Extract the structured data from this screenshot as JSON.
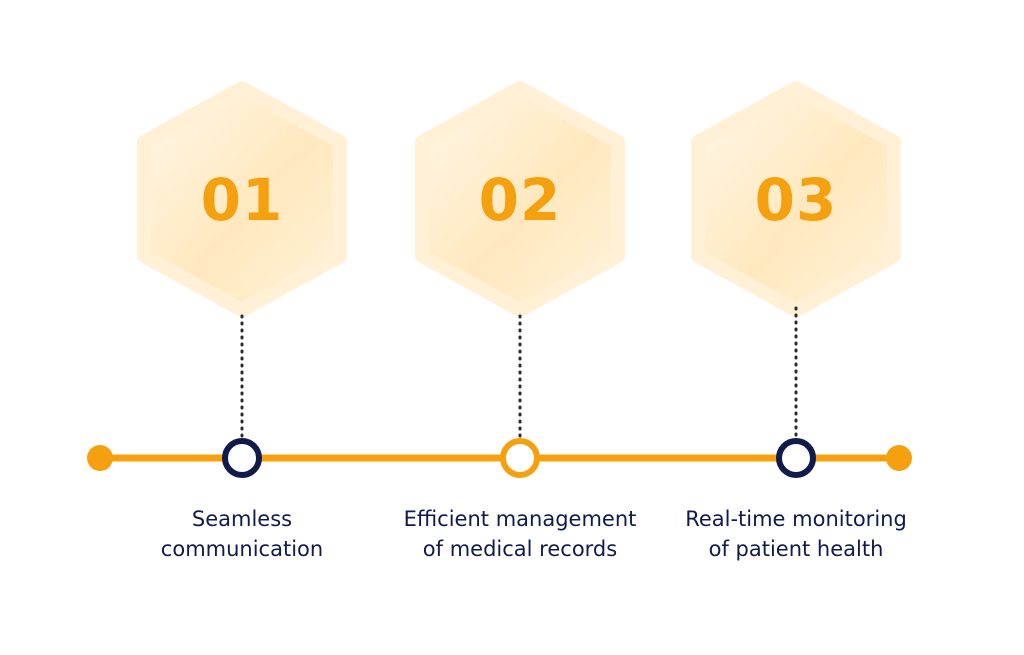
{
  "colors": {
    "accent": "#F5A10F",
    "navy": "#101B4B",
    "hex_light": "#FFF4DE",
    "hex_mid": "#FFE6B5"
  },
  "steps": [
    {
      "number": "01",
      "label_line1": "Seamless",
      "label_line2": "communication",
      "marker": "navy"
    },
    {
      "number": "02",
      "label_line1": "Efficient management",
      "label_line2": "of medical records",
      "marker": "accent"
    },
    {
      "number": "03",
      "label_line1": "Real-time monitoring",
      "label_line2": "of patient health",
      "marker": "navy"
    }
  ]
}
